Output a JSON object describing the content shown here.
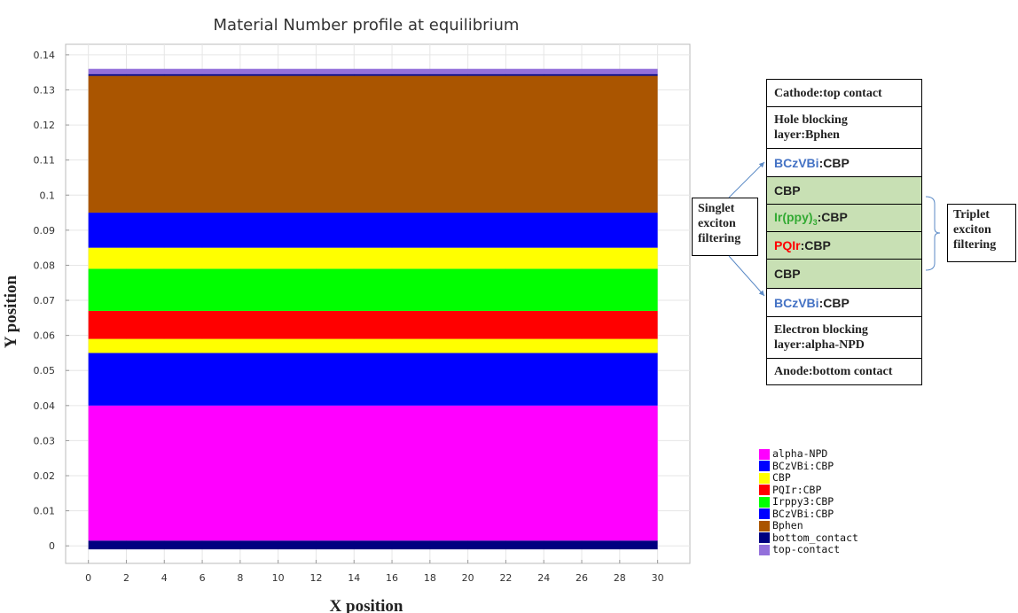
{
  "chart_data": {
    "type": "area",
    "title": "Material Number profile at equilibrium",
    "xlabel": "X position",
    "ylabel": "Y position",
    "xlim": [
      -1.2,
      31.7
    ],
    "ylim": [
      -0.005,
      0.143
    ],
    "x_ticks": [
      0,
      2,
      4,
      6,
      8,
      10,
      12,
      14,
      16,
      18,
      20,
      22,
      24,
      26,
      28,
      30
    ],
    "y_ticks": [
      0,
      0.01,
      0.02,
      0.03,
      0.04,
      0.05,
      0.06,
      0.07,
      0.08,
      0.09,
      0.1,
      0.11,
      0.12,
      0.13,
      0.14
    ],
    "y_tick_labels": [
      "0",
      "0.01",
      "0.02",
      "0.03",
      "0.04",
      "0.05",
      "0.06",
      "0.07",
      "0.08",
      "0.09",
      "0.1",
      "0.11",
      "0.12",
      "0.13",
      "0.14"
    ],
    "grid": true,
    "x_range": [
      0,
      30
    ],
    "layers": [
      {
        "name": "bottom_contact",
        "y0": -0.001,
        "y1": 0.0015,
        "color": "#000080"
      },
      {
        "name": "alpha-NPD",
        "y0": 0.0015,
        "y1": 0.04,
        "color": "#ff00ff"
      },
      {
        "name": "BCzVBi:CBP",
        "y0": 0.04,
        "y1": 0.055,
        "color": "#0000ff"
      },
      {
        "name": "CBP",
        "y0": 0.055,
        "y1": 0.059,
        "color": "#ffff00"
      },
      {
        "name": "PQIr:CBP",
        "y0": 0.059,
        "y1": 0.067,
        "color": "#ff0000"
      },
      {
        "name": "Irppy3:CBP",
        "y0": 0.067,
        "y1": 0.079,
        "color": "#00ff00"
      },
      {
        "name": "CBP",
        "y0": 0.079,
        "y1": 0.085,
        "color": "#ffff00"
      },
      {
        "name": "BCzVBi:CBP",
        "y0": 0.085,
        "y1": 0.095,
        "color": "#0000ff"
      },
      {
        "name": "Bphen",
        "y0": 0.095,
        "y1": 0.134,
        "color": "#aa5500"
      },
      {
        "name": "bottom_contact",
        "y0": 0.134,
        "y1": 0.1345,
        "color": "#000080"
      },
      {
        "name": "top-contact",
        "y0": 0.1345,
        "y1": 0.136,
        "color": "#9370db"
      }
    ],
    "legend_location": "bottom-right"
  },
  "legend": [
    {
      "label": "alpha-NPD",
      "color": "#ff00ff"
    },
    {
      "label": "BCzVBi:CBP",
      "color": "#0000ff"
    },
    {
      "label": "CBP",
      "color": "#ffff00"
    },
    {
      "label": "PQIr:CBP",
      "color": "#ff0000"
    },
    {
      "label": "Irppy3:CBP",
      "color": "#00ff00"
    },
    {
      "label": "BCzVBi:CBP",
      "color": "#0000ff"
    },
    {
      "label": "Bphen",
      "color": "#aa5500"
    },
    {
      "label": "bottom_contact",
      "color": "#000080"
    },
    {
      "label": "top-contact",
      "color": "#9370db"
    }
  ],
  "stack": {
    "cathode": "Cathode:top contact",
    "hole_blocking": "Hole blocking layer:Bphen",
    "bczvbi_top_a": "BCzVBi",
    "bczvbi_top_b": ":CBP",
    "cbp_top": "CBP",
    "irppy_a": "Ir(ppy)",
    "irppy_sub": "3",
    "irppy_b": ":CBP",
    "pqir_a": "PQIr",
    "pqir_b": ":CBP",
    "cbp_bottom": "CBP",
    "bczvbi_bottom_a": "BCzVBi",
    "bczvbi_bottom_b": ":CBP",
    "electron_blocking": "Electron blocking layer:alpha-NPD",
    "anode": "Anode:bottom contact"
  },
  "callouts": {
    "singlet": "Singlet exciton filtering",
    "triplet": "Triplet exciton filtering"
  },
  "colors": {
    "bczvbi_text": "#4472c4",
    "irppy_text": "#33aa33",
    "pqir_text": "#ff0000",
    "green_fill": "#c8e0b4",
    "arrow": "#5b8ac6"
  }
}
